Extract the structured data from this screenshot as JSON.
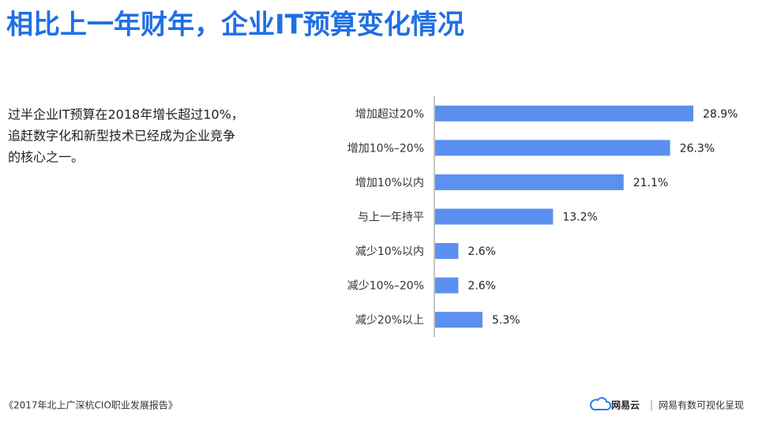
{
  "chart_data": {
    "type": "bar",
    "orientation": "horizontal",
    "title": "相比上一年财年，企业IT预算变化情况",
    "categories": [
      "增加超过20%",
      "增加10%–20%",
      "增加10%以内",
      "与上一年持平",
      "减少10%以内",
      "减少10%–20%",
      "减少20%以上"
    ],
    "values": [
      28.9,
      26.3,
      21.1,
      13.2,
      2.6,
      2.6,
      5.3
    ],
    "value_labels": [
      "28.9%",
      "26.3%",
      "21.1%",
      "13.2%",
      "2.6%",
      "2.6%",
      "5.3%"
    ],
    "color": "#5b8ff0"
  },
  "description": [
    "过半企业IT预算在2018年增长超过10%，",
    "追赶数字化和新型技术已经成为企业竞争",
    "的核心之一。"
  ],
  "footer": {
    "source": "《2017年北上广深杭CIO职业发展报告》",
    "brand": "网易云",
    "credit": "网易有数可视化呈现"
  }
}
